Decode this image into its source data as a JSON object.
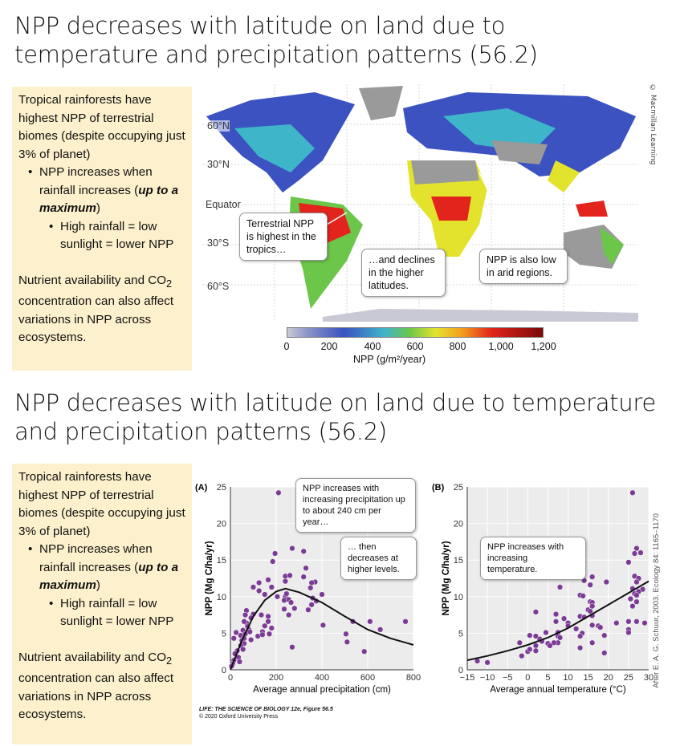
{
  "slide1": {
    "title": "NPP decreases with latitude on land due to temperature and precipitation patterns (56.2)",
    "notes": {
      "intro": "Tropical rainforests have highest NPP of terrestrial biomes (despite occupying just 3% of planet)",
      "bullet1_pre": "NPP increases when rainfall increases (",
      "bullet1_em": "up to a maximum",
      "bullet1_post": ")",
      "sub_bullet": "High rainfall = low sunlight = lower NPP",
      "nutrient_pre": "Nutrient availability and CO",
      "nutrient_sub": "2",
      "nutrient_post": " concentration can also affect variations in NPP across ecosystems."
    },
    "map": {
      "credit": "© Macmillan Learning",
      "latitudes": [
        "60°N",
        "30°N",
        "Equator",
        "30°S",
        "60°S"
      ],
      "callouts": [
        "Terrestrial NPP is highest in the tropics…",
        "…and declines in the higher latitudes.",
        "NPP is also low in arid regions."
      ],
      "colorbar_ticks": [
        "0",
        "200",
        "400",
        "600",
        "800",
        "1,000",
        "1,200"
      ],
      "colorbar_label": "NPP (g/m²/year)",
      "colors": {
        "low": "#c9c9d6",
        "mid": "#6cc64a",
        "high": "#e2241c",
        "max": "#7a0a0a",
        "no_data": "#9a9a9a"
      }
    }
  },
  "slide2": {
    "title": "NPP decreases with latitude on land due to temperature and precipitation patterns (56.2)",
    "caption_title": "LIFE: THE SCIENCE OF BIOLOGY 12e, Figure 56.5",
    "caption_copy": "© 2020 Oxford University Press",
    "after": "After E. A. G. Schuur, 2003. Ecology 84: 1165–1170"
  },
  "chart_data": [
    {
      "type": "scatter",
      "panel": "(A)",
      "xlabel": "Average annual precipitation (cm)",
      "ylabel": "NPP (Mg C/ha/yr)",
      "xlim": [
        0,
        800
      ],
      "ylim": [
        0,
        25
      ],
      "xticks": [
        0,
        200,
        400,
        600,
        800
      ],
      "yticks": [
        0,
        5,
        10,
        15,
        20,
        25
      ],
      "grid": true,
      "point_color": "#7b3b96",
      "annotations": [
        "NPP increases with increasing precipitation up to about 240 cm per year…",
        "… then decreases at higher levels."
      ],
      "points": [
        [
          210,
          24.2
        ],
        [
          270,
          16.6
        ],
        [
          320,
          16.2
        ],
        [
          195,
          15.9
        ],
        [
          185,
          14.8
        ],
        [
          330,
          13.9
        ],
        [
          240,
          12.8
        ],
        [
          260,
          12.9
        ],
        [
          320,
          12.7
        ],
        [
          165,
          12.3
        ],
        [
          370,
          12
        ],
        [
          355,
          11.9
        ],
        [
          125,
          11.9
        ],
        [
          100,
          11.3
        ],
        [
          180,
          11.3
        ],
        [
          350,
          11.2
        ],
        [
          240,
          12.1
        ],
        [
          125,
          10.8
        ],
        [
          150,
          10.3
        ],
        [
          205,
          10
        ],
        [
          240,
          10
        ],
        [
          245,
          10.4
        ],
        [
          400,
          10.3
        ],
        [
          360,
          9.8
        ],
        [
          375,
          9.4
        ],
        [
          235,
          9.5
        ],
        [
          255,
          9.6
        ],
        [
          265,
          9.2
        ],
        [
          280,
          8.4
        ],
        [
          235,
          8.3
        ],
        [
          340,
          8.2
        ],
        [
          355,
          8.9
        ],
        [
          70,
          8.1
        ],
        [
          100,
          7.6
        ],
        [
          65,
          7.5
        ],
        [
          90,
          7.1
        ],
        [
          135,
          7.5
        ],
        [
          165,
          7.3
        ],
        [
          255,
          7.5
        ],
        [
          165,
          6.6
        ],
        [
          405,
          6.1
        ],
        [
          535,
          6.6
        ],
        [
          610,
          6.6
        ],
        [
          765,
          6.6
        ],
        [
          655,
          5.5
        ],
        [
          150,
          6
        ],
        [
          180,
          5.7
        ],
        [
          70,
          6.4
        ],
        [
          60,
          6.6
        ],
        [
          75,
          5.9
        ],
        [
          80,
          5.5
        ],
        [
          55,
          5.4
        ],
        [
          140,
          5.2
        ],
        [
          120,
          4.6
        ],
        [
          140,
          4.8
        ],
        [
          170,
          4.9
        ],
        [
          505,
          4.9
        ],
        [
          510,
          3.8
        ],
        [
          585,
          2.5
        ],
        [
          270,
          3.1
        ],
        [
          15,
          4.3
        ],
        [
          25,
          5.1
        ],
        [
          45,
          4.7
        ],
        [
          65,
          4.9
        ],
        [
          50,
          4
        ],
        [
          60,
          3.6
        ],
        [
          45,
          3.3
        ],
        [
          55,
          2.8
        ],
        [
          30,
          2.6
        ],
        [
          20,
          2.2
        ],
        [
          35,
          1.7
        ],
        [
          15,
          1.3
        ],
        [
          40,
          1.1
        ],
        [
          10,
          0.8
        ],
        [
          5,
          0.5
        ],
        [
          90,
          4.1
        ],
        [
          85,
          5.2
        ],
        [
          60,
          4.3
        ]
      ],
      "fit": [
        [
          0,
          0
        ],
        [
          50,
          4
        ],
        [
          100,
          7.3
        ],
        [
          150,
          9.5
        ],
        [
          200,
          10.7
        ],
        [
          240,
          11.1
        ],
        [
          300,
          10.6
        ],
        [
          400,
          9.2
        ],
        [
          500,
          7.3
        ],
        [
          600,
          5.5
        ],
        [
          700,
          4.3
        ],
        [
          800,
          3.4
        ]
      ]
    },
    {
      "type": "scatter",
      "panel": "(B)",
      "xlabel": "Average annual temperature (°C)",
      "ylabel": "NPP (Mg C/ha/yr)",
      "xlim": [
        -15,
        30
      ],
      "ylim": [
        0,
        25
      ],
      "xticks": [
        -15,
        -10,
        -5,
        0,
        5,
        10,
        15,
        20,
        25,
        30
      ],
      "yticks": [
        0,
        5,
        10,
        15,
        20,
        25
      ],
      "grid": true,
      "point_color": "#7b3b96",
      "annotations": [
        "NPP increases with increasing temperature."
      ],
      "points": [
        [
          26,
          24.2
        ],
        [
          27,
          16.6
        ],
        [
          26.5,
          15.9
        ],
        [
          28,
          16
        ],
        [
          25,
          14.7
        ],
        [
          16,
          12.7
        ],
        [
          26.5,
          12.8
        ],
        [
          27.5,
          12.5
        ],
        [
          14,
          12.2
        ],
        [
          19.5,
          12
        ],
        [
          15.5,
          11.6
        ],
        [
          8,
          11.3
        ],
        [
          26,
          11.1
        ],
        [
          27,
          12
        ],
        [
          28.5,
          11
        ],
        [
          13,
          10.2
        ],
        [
          13.7,
          10.1
        ],
        [
          26.5,
          10.4
        ],
        [
          27.5,
          10.7
        ],
        [
          27,
          10.2
        ],
        [
          15.5,
          9.3
        ],
        [
          16,
          9.2
        ],
        [
          16,
          8.7
        ],
        [
          25.5,
          9.7
        ],
        [
          26,
          8.7
        ],
        [
          27,
          9.3
        ],
        [
          15,
          8.2
        ],
        [
          15.5,
          8
        ],
        [
          2,
          7.9
        ],
        [
          7,
          7.6
        ],
        [
          13,
          7.3
        ],
        [
          14,
          7.2
        ],
        [
          16,
          7.4
        ],
        [
          9,
          7
        ],
        [
          10,
          6.4
        ],
        [
          7,
          6.6
        ],
        [
          10,
          6
        ],
        [
          12,
          5.6
        ],
        [
          16,
          6.1
        ],
        [
          17.5,
          6
        ],
        [
          18,
          5.8
        ],
        [
          22,
          6.4
        ],
        [
          25,
          6.6
        ],
        [
          27,
          6.6
        ],
        [
          29,
          6.4
        ],
        [
          25,
          5.5
        ],
        [
          25,
          5.1
        ],
        [
          4.5,
          5.1
        ],
        [
          7.5,
          5.1
        ],
        [
          0.5,
          4.7
        ],
        [
          2,
          4.6
        ],
        [
          7.5,
          4.6
        ],
        [
          13.5,
          5
        ],
        [
          13,
          4.6
        ],
        [
          19,
          4.7
        ],
        [
          8,
          4.4
        ],
        [
          3,
          4.2
        ],
        [
          3.5,
          3.9
        ],
        [
          5,
          3.6
        ],
        [
          7.5,
          3.7
        ],
        [
          6.5,
          3.7
        ],
        [
          2,
          3.3
        ],
        [
          5.5,
          3.3
        ],
        [
          -2,
          3.7
        ],
        [
          16,
          3.7
        ],
        [
          13,
          3
        ],
        [
          0,
          2.5
        ],
        [
          0.5,
          2.8
        ],
        [
          2,
          2.6
        ],
        [
          -1.5,
          1.9
        ],
        [
          19,
          2.3
        ],
        [
          -12.5,
          1.2
        ],
        [
          -10,
          1
        ]
      ],
      "fit": [
        [
          -15,
          1.3
        ],
        [
          -10,
          1.9
        ],
        [
          -5,
          2.6
        ],
        [
          0,
          3.4
        ],
        [
          5,
          4.4
        ],
        [
          10,
          5.7
        ],
        [
          15,
          7.3
        ],
        [
          20,
          8.9
        ],
        [
          25,
          10.5
        ],
        [
          30,
          12.1
        ]
      ]
    }
  ]
}
